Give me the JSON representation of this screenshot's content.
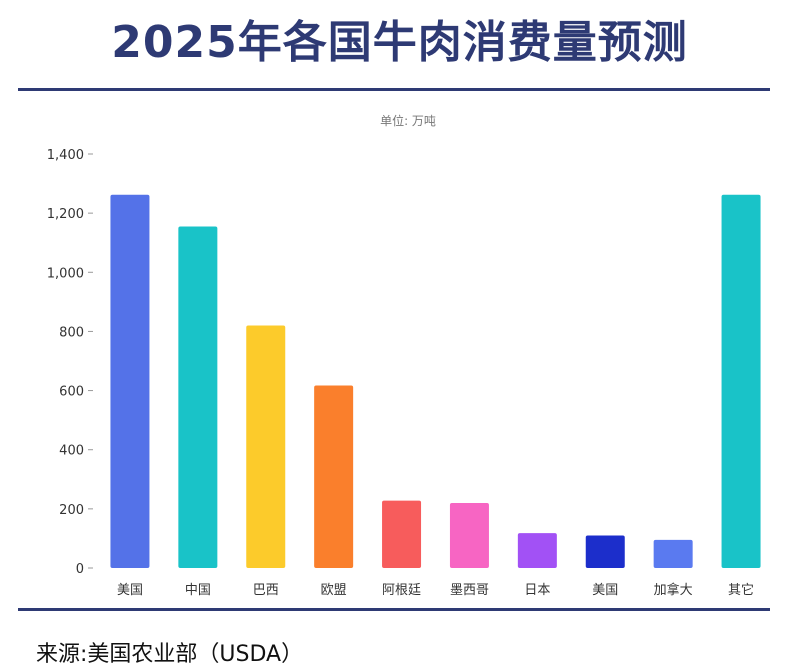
{
  "title": "2025年各国牛肉消费量预测",
  "source": "来源:美国农业部（USDA）",
  "chart_data": {
    "type": "bar",
    "unit_label": "单位: 万吨",
    "categories": [
      "美国",
      "中国",
      "巴西",
      "欧盟",
      "阿根廷",
      "墨西哥",
      "日本",
      "美国",
      "加拿大",
      "其它"
    ],
    "values": [
      1262,
      1155,
      820,
      617,
      228,
      220,
      118,
      110,
      95,
      1262
    ],
    "colors": [
      "#5472e8",
      "#19c3c8",
      "#fccb2b",
      "#fa7f2c",
      "#f75c5c",
      "#f765c3",
      "#a251f5",
      "#1c2ecb",
      "#5a7af0",
      "#19c3c8"
    ],
    "ylim": [
      0,
      1400
    ],
    "yticks": [
      0,
      200,
      400,
      600,
      800,
      1000,
      1200,
      1400
    ],
    "ytick_labels": [
      "0",
      "200",
      "400",
      "600",
      "800",
      "1,000",
      "1,200",
      "1,400"
    ]
  }
}
